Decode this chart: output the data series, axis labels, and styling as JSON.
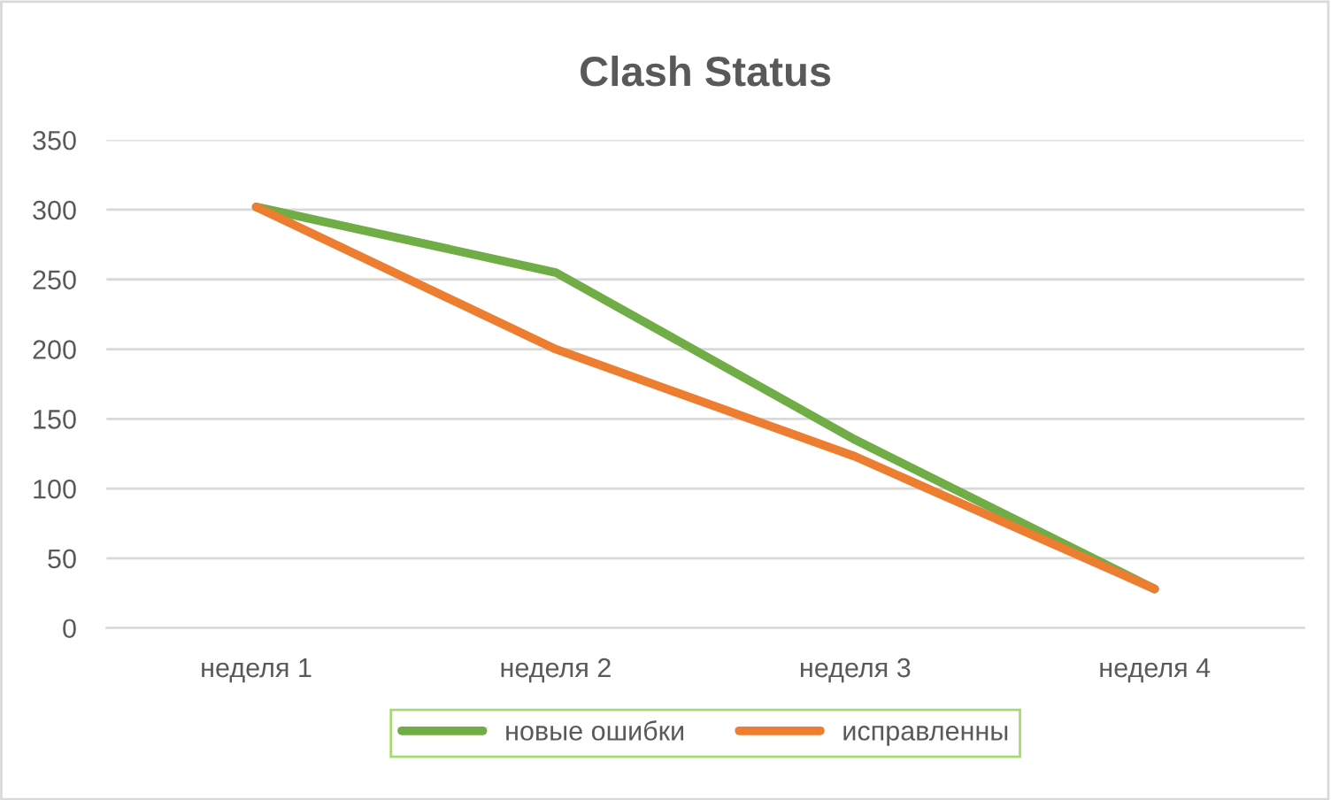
{
  "chart_data": {
    "type": "line",
    "title": "Clash Status",
    "categories": [
      "неделя 1",
      "неделя 2",
      "неделя 3",
      "неделя 4"
    ],
    "series": [
      {
        "name": "новые ошибки",
        "color": "#70ad47",
        "values": [
          302,
          255,
          135,
          28
        ]
      },
      {
        "name": "исправленны",
        "color": "#ed7d31",
        "values": [
          302,
          200,
          123,
          28
        ]
      }
    ],
    "ylim": [
      0,
      350
    ],
    "yticks": [
      0,
      50,
      100,
      150,
      200,
      250,
      300,
      350
    ],
    "grid": "y",
    "legend": "bottom",
    "marker": "none",
    "line_style": "solid"
  }
}
